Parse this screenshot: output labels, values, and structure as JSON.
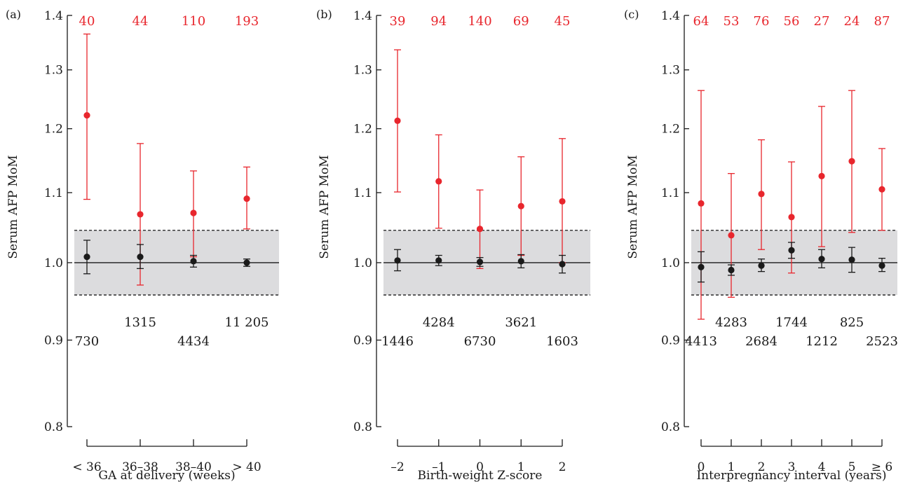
{
  "colors": {
    "red": "#e8262d",
    "black": "#1a1a1a",
    "band": "#dcdcde"
  },
  "chart_data": [
    {
      "type": "scatter",
      "panel": "(a)",
      "xlabel": "GA at delivery (weeks)",
      "ylabel": "Serum AFP MoM",
      "y_scale": "log",
      "ylim": [
        0.8,
        1.4
      ],
      "yticks": [
        "0.8",
        "0.9",
        "1.0",
        "1.1",
        "1.2",
        "1.3",
        "1.4"
      ],
      "reference_line": 1.0,
      "reference_band": [
        0.957,
        1.045
      ],
      "categories": [
        "< 36",
        "36–38",
        "38–40",
        "> 40"
      ],
      "series": [
        {
          "color": "red",
          "values": [
            1.222,
            1.068,
            1.07,
            1.091
          ],
          "lower": [
            1.09,
            0.97,
            1.008,
            1.047
          ],
          "upper": [
            1.365,
            1.176,
            1.133,
            1.139
          ],
          "counts": [
            "40",
            "44",
            "110",
            "193"
          ]
        },
        {
          "color": "black",
          "values": [
            1.008,
            1.008,
            1.002,
            1.0
          ],
          "lower": [
            0.985,
            0.992,
            0.994,
            0.995
          ],
          "upper": [
            1.031,
            1.025,
            1.01,
            1.005
          ],
          "counts": [
            "730",
            "1315",
            "4434",
            "11 205"
          ]
        }
      ]
    },
    {
      "type": "scatter",
      "panel": "(b)",
      "xlabel": "Birth-weight Z-score",
      "ylabel": "Serum AFP MoM",
      "y_scale": "log",
      "ylim": [
        0.8,
        1.4
      ],
      "yticks": [
        "0.8",
        "0.9",
        "1.0",
        "1.1",
        "1.2",
        "1.3",
        "1.4"
      ],
      "reference_line": 1.0,
      "reference_band": [
        0.957,
        1.045
      ],
      "categories": [
        "–2",
        "–1",
        "0",
        "1",
        "2"
      ],
      "series": [
        {
          "color": "red",
          "values": [
            1.213,
            1.117,
            1.047,
            1.08,
            1.087
          ],
          "lower": [
            1.101,
            1.048,
            0.992,
            1.01,
            1.0
          ],
          "upper": [
            1.336,
            1.19,
            1.104,
            1.155,
            1.184
          ],
          "counts": [
            "39",
            "94",
            "140",
            "69",
            "45"
          ]
        },
        {
          "color": "black",
          "values": [
            1.003,
            1.003,
            1.001,
            1.002,
            0.998
          ],
          "lower": [
            0.989,
            0.996,
            0.995,
            0.993,
            0.986
          ],
          "upper": [
            1.018,
            1.01,
            1.007,
            1.011,
            1.01
          ],
          "counts": [
            "1446",
            "4284",
            "6730",
            "3621",
            "1603"
          ]
        }
      ]
    },
    {
      "type": "scatter",
      "panel": "(c)",
      "xlabel": "Interpregnancy interval (years)",
      "ylabel": "Serum AFP MoM",
      "y_scale": "log",
      "ylim": [
        0.8,
        1.4
      ],
      "yticks": [
        "0.8",
        "0.9",
        "1.0",
        "1.1",
        "1.2",
        "1.3",
        "1.4"
      ],
      "reference_line": 1.0,
      "reference_band": [
        0.957,
        1.045
      ],
      "categories": [
        "0",
        "1",
        "2",
        "3",
        "4",
        "5",
        "≥ 6"
      ],
      "series": [
        {
          "color": "red",
          "values": [
            1.084,
            1.038,
            1.098,
            1.064,
            1.125,
            1.148,
            1.105
          ],
          "lower": [
            0.926,
            0.954,
            1.018,
            0.986,
            1.022,
            1.042,
            1.045
          ],
          "upper": [
            1.264,
            1.129,
            1.182,
            1.147,
            1.237,
            1.264,
            1.168
          ],
          "counts": [
            "64",
            "53",
            "76",
            "56",
            "27",
            "24",
            "87"
          ]
        },
        {
          "color": "black",
          "values": [
            0.994,
            0.99,
            0.996,
            1.017,
            1.005,
            1.004,
            0.996
          ],
          "lower": [
            0.974,
            0.983,
            0.988,
            1.006,
            0.993,
            0.987,
            0.988
          ],
          "upper": [
            1.015,
            0.997,
            1.005,
            1.028,
            1.018,
            1.021,
            1.006
          ],
          "counts": [
            "4413",
            "4283",
            "2684",
            "1744",
            "1212",
            "825",
            "2523"
          ]
        }
      ]
    }
  ]
}
